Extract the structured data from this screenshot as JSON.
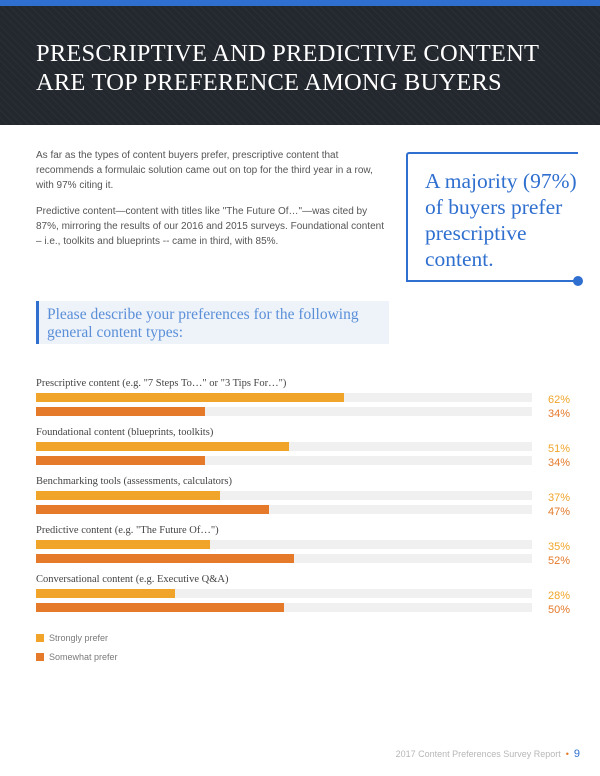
{
  "header": {
    "title_line1": "PRESCRIPTIVE AND PREDICTIVE CONTENT",
    "title_line2": "ARE TOP PREFERENCE AMONG BUYERS"
  },
  "intro": {
    "paragraph1": "As far as the types of content buyers prefer, prescriptive content that recommends a formulaic solution came out on top for the third year in a row, with 97% citing it.",
    "paragraph2": "Predictive content—content with titles like \"The Future Of…\"—was cited by 87%, mirroring the results of our 2016 and 2015 surveys. Foundational content – i.e., toolkits and blueprints -- came in third, with 85%."
  },
  "callout": {
    "text": "A majority (97%) of buyers prefer prescriptive content."
  },
  "question": {
    "text": "Please describe your preferences for the following general content types:"
  },
  "chart_data": {
    "type": "bar",
    "orientation": "horizontal",
    "categories": [
      "Prescriptive content (e.g. \"7 Steps To…\" or \"3 Tips For…\")",
      "Foundational content (blueprints, toolkits)",
      "Benchmarking tools (assessments, calculators)",
      "Predictive content (e.g. \"The Future Of…\")",
      "Conversational content (e.g. Executive Q&A)"
    ],
    "series": [
      {
        "name": "Strongly prefer",
        "values": [
          62,
          51,
          37,
          35,
          28
        ],
        "color": "#f0a52a",
        "labels": [
          "62%",
          "51%",
          "37%",
          "35%",
          "28%"
        ]
      },
      {
        "name": "Somewhat prefer",
        "values": [
          34,
          34,
          47,
          52,
          50
        ],
        "color": "#e47a2a",
        "labels": [
          "34%",
          "34%",
          "47%",
          "52%",
          "50%"
        ]
      }
    ],
    "xlim": [
      0,
      100
    ],
    "legend": "bottom-left",
    "grid": false
  },
  "footer": {
    "report": "2017 Content Preferences Survey Report",
    "page": "9"
  }
}
